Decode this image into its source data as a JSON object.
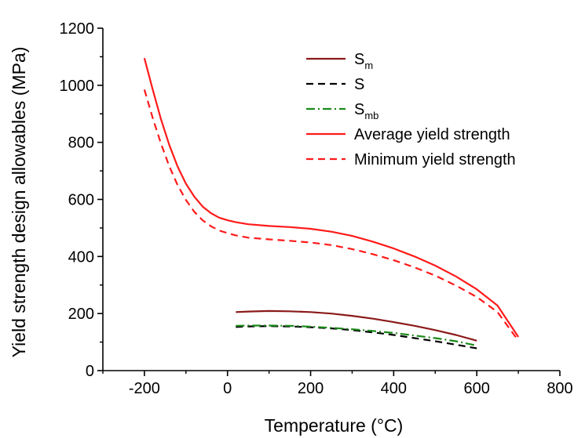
{
  "chart_data": {
    "type": "line",
    "xlabel": "Temperature (°C)",
    "ylabel": "Yield strength design allowables (MPa)",
    "xlim": [
      -300,
      800
    ],
    "ylim": [
      0,
      1200
    ],
    "xticks": [
      -200,
      0,
      200,
      400,
      600,
      800
    ],
    "xtick_labels": [
      "-200",
      "0",
      "200",
      "400",
      "600",
      "800"
    ],
    "yticks": [
      0,
      200,
      400,
      600,
      800,
      1000,
      1200
    ],
    "ytick_labels": [
      "0",
      "200",
      "400",
      "600",
      "800",
      "1000",
      "1200"
    ],
    "grid": false,
    "legend_position": "top-right",
    "series": [
      {
        "name": "S",
        "name_sub": "m",
        "color": "#8b1a1a",
        "dash": "solid",
        "x": [
          20,
          50,
          100,
          150,
          200,
          250,
          300,
          350,
          400,
          450,
          500,
          550,
          600
        ],
        "y": [
          205,
          207,
          209,
          208,
          205,
          200,
          192,
          182,
          170,
          157,
          142,
          125,
          105
        ]
      },
      {
        "name": "S",
        "name_sub": "",
        "color": "#000000",
        "dash": "dashed",
        "x": [
          20,
          50,
          100,
          150,
          200,
          250,
          300,
          350,
          400,
          450,
          500,
          550,
          600
        ],
        "y": [
          153,
          155,
          156,
          155,
          152,
          148,
          142,
          134,
          125,
          114,
          103,
          91,
          78
        ]
      },
      {
        "name": "S",
        "name_sub": "mb",
        "color": "#1a8a1a",
        "dash": "dashdot",
        "x": [
          20,
          50,
          100,
          150,
          200,
          250,
          300,
          350,
          400,
          450,
          500,
          550,
          600
        ],
        "y": [
          157,
          158,
          158,
          157,
          154,
          150,
          145,
          139,
          132,
          123,
          114,
          103,
          88
        ]
      },
      {
        "name": "Average yield strength",
        "name_sub": "",
        "color": "#ff1a1a",
        "dash": "solid",
        "x": [
          -200,
          -180,
          -160,
          -140,
          -120,
          -100,
          -80,
          -60,
          -40,
          -20,
          0,
          20,
          50,
          100,
          150,
          200,
          250,
          300,
          350,
          400,
          450,
          500,
          550,
          600,
          650,
          700
        ],
        "y": [
          1095,
          985,
          880,
          790,
          715,
          655,
          610,
          575,
          552,
          536,
          527,
          520,
          513,
          507,
          503,
          497,
          487,
          472,
          452,
          428,
          400,
          368,
          330,
          285,
          228,
          118
        ]
      },
      {
        "name": "Minimum yield strength",
        "name_sub": "",
        "color": "#ff1a1a",
        "dash": "dashed",
        "x": [
          -200,
          -180,
          -160,
          -140,
          -120,
          -100,
          -80,
          -60,
          -40,
          -20,
          0,
          20,
          50,
          100,
          150,
          200,
          250,
          300,
          350,
          400,
          450,
          500,
          550,
          600,
          650,
          700
        ],
        "y": [
          985,
          885,
          795,
          715,
          650,
          598,
          557,
          527,
          506,
          491,
          482,
          474,
          466,
          460,
          455,
          449,
          440,
          426,
          408,
          387,
          362,
          333,
          298,
          258,
          205,
          105
        ]
      }
    ]
  }
}
